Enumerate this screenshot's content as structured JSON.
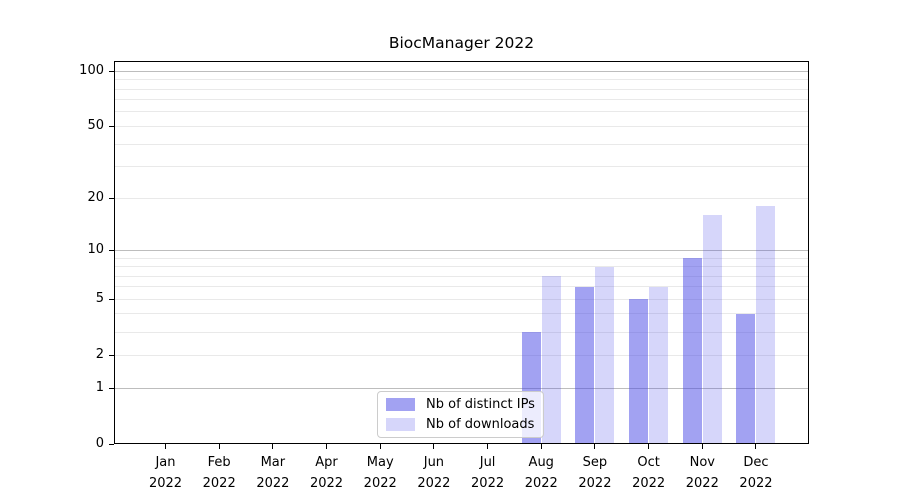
{
  "title": "BiocManager 2022",
  "chart_data": {
    "type": "bar",
    "title": "BiocManager 2022",
    "categories": [
      "Jan 2022",
      "Feb 2022",
      "Mar 2022",
      "Apr 2022",
      "May 2022",
      "Jun 2022",
      "Jul 2022",
      "Aug 2022",
      "Sep 2022",
      "Oct 2022",
      "Nov 2022",
      "Dec 2022"
    ],
    "x_tick_months": [
      "Jan",
      "Feb",
      "Mar",
      "Apr",
      "May",
      "Jun",
      "Jul",
      "Aug",
      "Sep",
      "Oct",
      "Nov",
      "Dec"
    ],
    "x_tick_year": "2022",
    "series": [
      {
        "name": "Nb of distinct IPs",
        "color": "rgba(70,70,230,0.50)",
        "values": [
          0,
          0,
          0,
          0,
          0,
          0,
          0,
          3,
          6,
          5,
          9,
          4
        ]
      },
      {
        "name": "Nb of downloads",
        "color": "rgba(70,70,230,0.22)",
        "values": [
          0,
          0,
          0,
          0,
          0,
          0,
          0,
          7,
          8,
          6,
          16,
          18
        ]
      }
    ],
    "xlabel": "",
    "ylabel": "",
    "yscale": "log1p",
    "ylim": [
      0,
      114
    ],
    "yticks": [
      0,
      1,
      2,
      5,
      10,
      20,
      50,
      100
    ],
    "grid_major_lines": [
      1,
      10,
      100
    ],
    "grid_minor_lines": [
      2,
      3,
      4,
      5,
      6,
      7,
      8,
      9,
      20,
      30,
      40,
      50,
      60,
      70,
      80,
      90
    ],
    "legend_position": "lower center inside"
  },
  "colors": {
    "grid_major": "#bdbdbd",
    "grid_minor": "#e9e9e9",
    "axis": "#000000",
    "legend_border": "#cccccc",
    "legend_background": "rgba(255,255,255,0.8)"
  }
}
